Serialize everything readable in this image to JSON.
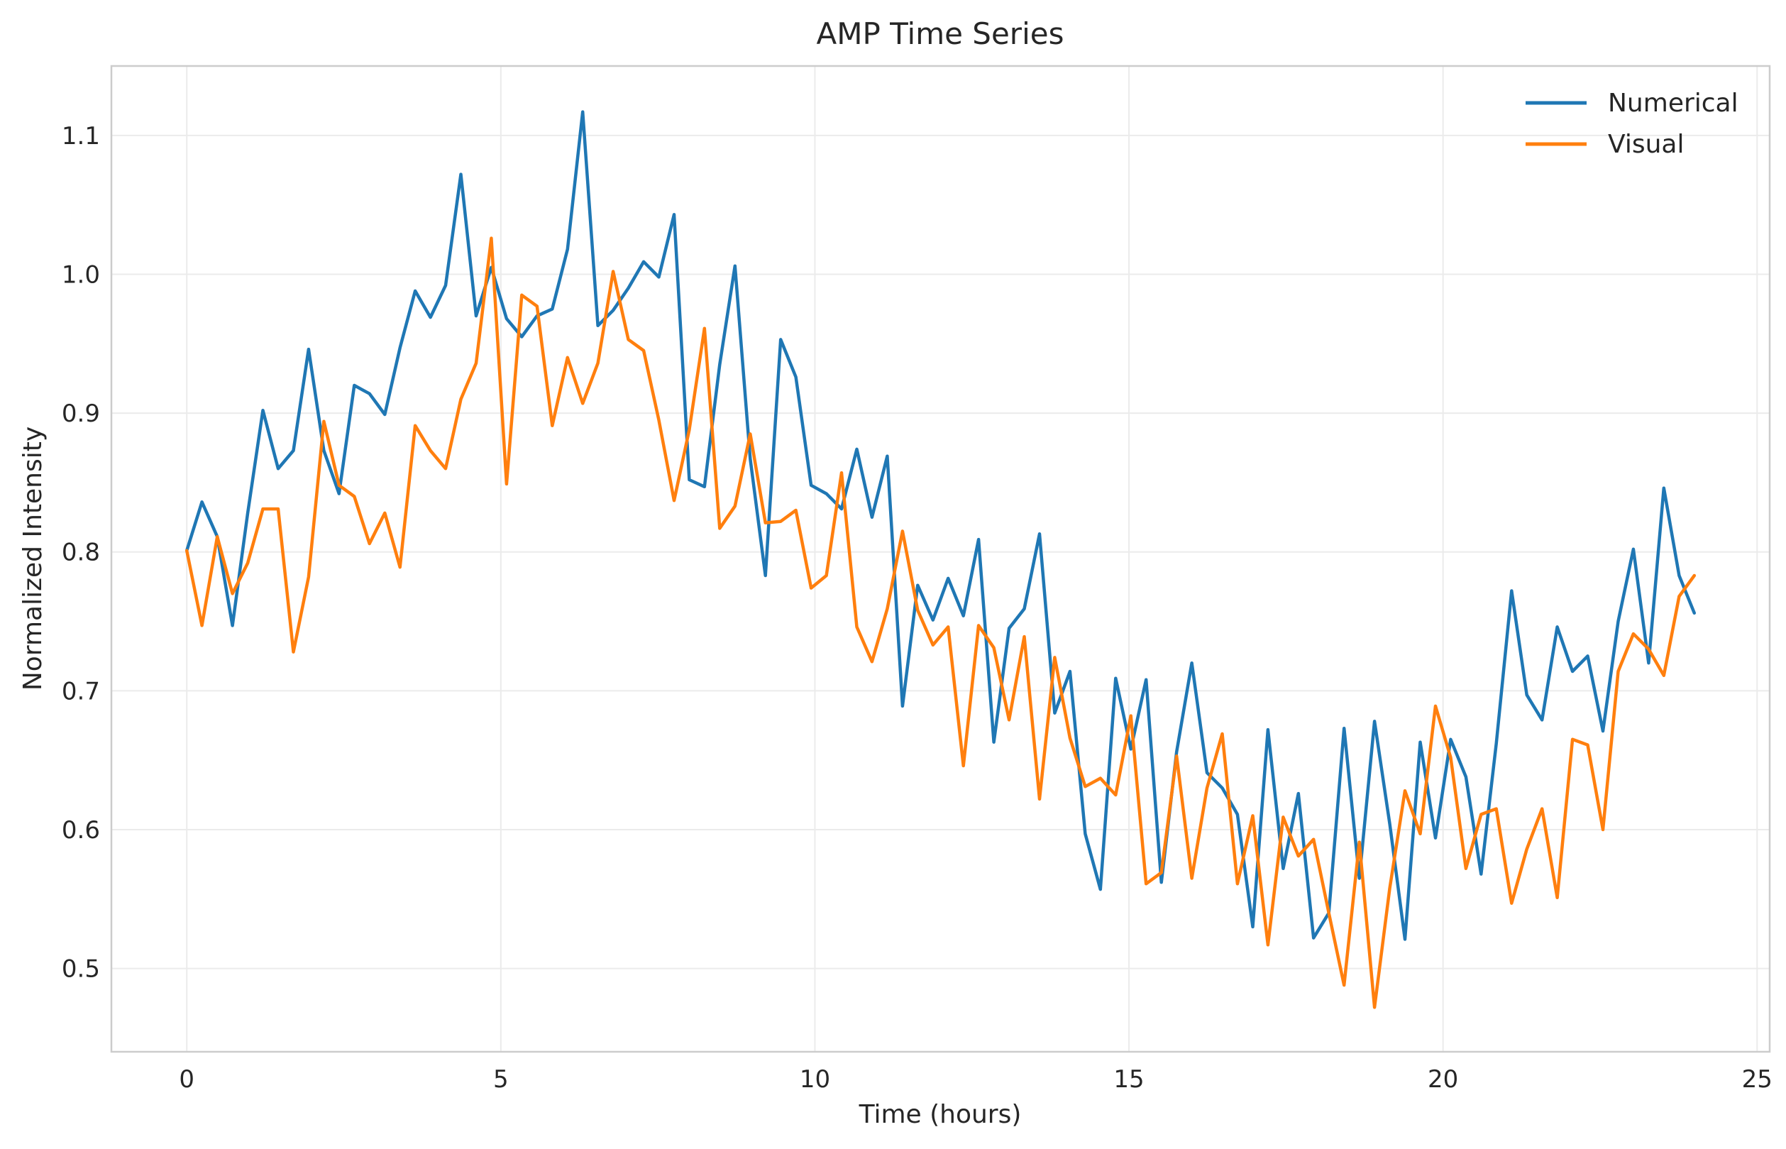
{
  "chart_data": {
    "type": "line",
    "title": "AMP Time Series",
    "xlabel": "Time (hours)",
    "ylabel": "Normalized Intensity",
    "xlim": [
      -1.2,
      25.2
    ],
    "ylim": [
      0.44,
      1.15
    ],
    "xticks": [
      0,
      5,
      10,
      15,
      20,
      25
    ],
    "xtick_labels": [
      "0",
      "5",
      "10",
      "15",
      "20",
      "25"
    ],
    "yticks": [
      0.5,
      0.6,
      0.7,
      0.8,
      0.9,
      1.0,
      1.1
    ],
    "ytick_labels": [
      "0.5",
      "0.6",
      "0.7",
      "0.8",
      "0.9",
      "1.0",
      "1.1"
    ],
    "grid": true,
    "legend_position": "top-right",
    "x": [
      0,
      0.242,
      0.485,
      0.727,
      0.97,
      1.212,
      1.455,
      1.697,
      1.939,
      2.182,
      2.424,
      2.667,
      2.909,
      3.152,
      3.394,
      3.636,
      3.879,
      4.121,
      4.364,
      4.606,
      4.848,
      5.091,
      5.333,
      5.576,
      5.818,
      6.061,
      6.303,
      6.545,
      6.788,
      7.03,
      7.273,
      7.515,
      7.758,
      8.0,
      8.242,
      8.485,
      8.727,
      8.97,
      9.212,
      9.455,
      9.697,
      9.939,
      10.182,
      10.424,
      10.667,
      10.909,
      11.152,
      11.394,
      11.636,
      11.879,
      12.121,
      12.364,
      12.606,
      12.848,
      13.091,
      13.333,
      13.576,
      13.818,
      14.061,
      14.303,
      14.545,
      14.788,
      15.03,
      15.273,
      15.515,
      15.758,
      16.0,
      16.242,
      16.485,
      16.727,
      16.97,
      17.212,
      17.455,
      17.697,
      17.939,
      18.182,
      18.424,
      18.667,
      18.909,
      19.152,
      19.394,
      19.636,
      19.879,
      20.121,
      20.364,
      20.606,
      20.848,
      21.091,
      21.333,
      21.576,
      21.818,
      22.061,
      22.303,
      22.545,
      22.788,
      23.03,
      23.273,
      23.515,
      23.758,
      24.0
    ],
    "series": [
      {
        "name": "Numerical",
        "color": "#1f77b4",
        "values": [
          0.801,
          0.836,
          0.811,
          0.747,
          0.828,
          0.902,
          0.86,
          0.873,
          0.946,
          0.873,
          0.842,
          0.92,
          0.914,
          0.899,
          0.947,
          0.988,
          0.969,
          0.992,
          1.072,
          0.97,
          1.005,
          0.968,
          0.955,
          0.97,
          0.975,
          1.018,
          1.117,
          0.963,
          0.974,
          0.99,
          1.009,
          0.998,
          1.043,
          0.852,
          0.847,
          0.935,
          1.006,
          0.867,
          0.783,
          0.953,
          0.926,
          0.848,
          0.842,
          0.831,
          0.874,
          0.825,
          0.869,
          0.689,
          0.776,
          0.751,
          0.781,
          0.754,
          0.809,
          0.663,
          0.745,
          0.759,
          0.813,
          0.684,
          0.714,
          0.597,
          0.557,
          0.709,
          0.658,
          0.708,
          0.562,
          0.656,
          0.72,
          0.641,
          0.63,
          0.611,
          0.53,
          0.672,
          0.572,
          0.626,
          0.522,
          0.54,
          0.673,
          0.565,
          0.678,
          0.604,
          0.521,
          0.663,
          0.594,
          0.665,
          0.638,
          0.568,
          0.662,
          0.772,
          0.697,
          0.679,
          0.746,
          0.714,
          0.725,
          0.671,
          0.75,
          0.802,
          0.72,
          0.846,
          0.783,
          0.756
        ]
      },
      {
        "name": "Visual",
        "color": "#ff7f0e",
        "values": [
          0.801,
          0.747,
          0.811,
          0.77,
          0.792,
          0.831,
          0.831,
          0.728,
          0.782,
          0.894,
          0.848,
          0.84,
          0.806,
          0.828,
          0.789,
          0.891,
          0.873,
          0.86,
          0.91,
          0.936,
          1.026,
          0.849,
          0.985,
          0.977,
          0.891,
          0.94,
          0.907,
          0.936,
          1.002,
          0.953,
          0.945,
          0.895,
          0.837,
          0.888,
          0.961,
          0.817,
          0.833,
          0.885,
          0.821,
          0.822,
          0.83,
          0.774,
          0.783,
          0.857,
          0.746,
          0.721,
          0.759,
          0.815,
          0.758,
          0.733,
          0.746,
          0.646,
          0.747,
          0.731,
          0.679,
          0.739,
          0.622,
          0.724,
          0.666,
          0.631,
          0.637,
          0.625,
          0.682,
          0.561,
          0.569,
          0.653,
          0.565,
          0.63,
          0.669,
          0.561,
          0.61,
          0.517,
          0.609,
          0.581,
          0.593,
          0.54,
          0.488,
          0.591,
          0.472,
          0.558,
          0.628,
          0.597,
          0.689,
          0.652,
          0.572,
          0.611,
          0.615,
          0.547,
          0.586,
          0.615,
          0.551,
          0.665,
          0.661,
          0.6,
          0.714,
          0.741,
          0.73,
          0.711,
          0.768,
          0.783
        ]
      }
    ]
  }
}
